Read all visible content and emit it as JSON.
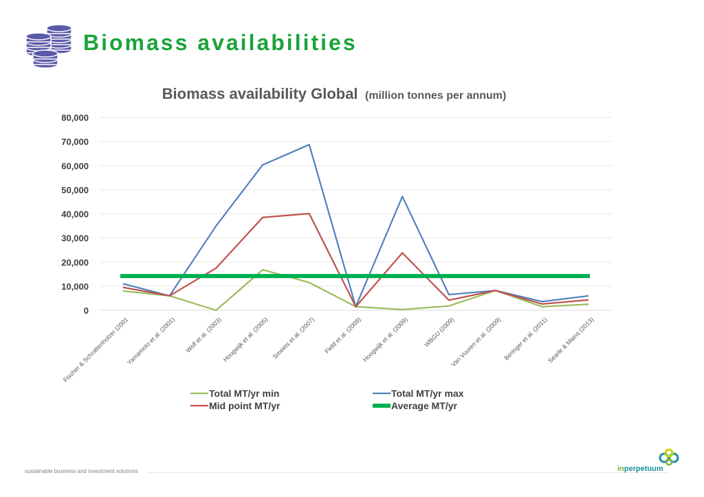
{
  "page": {
    "title": "Biomass availabilities",
    "footer": "sustainable business and investment solutions",
    "brand_prefix": "in",
    "brand_suffix": "perpetuum",
    "logo_icon": "database-stack-icon",
    "brand_icon": "interlinked-rings-icon"
  },
  "chart_data": {
    "type": "line",
    "title": "Biomass availability Global",
    "subtitle": "(million tonnes per annum)",
    "xlabel": "",
    "ylabel": "",
    "ylim": [
      0,
      80000
    ],
    "yticks": [
      0,
      10000,
      20000,
      30000,
      40000,
      50000,
      60000,
      70000,
      80000
    ],
    "ytick_labels": [
      "0",
      "10,000",
      "20,000",
      "30,000",
      "40,000",
      "50,000",
      "60,000",
      "70,000",
      "80,000"
    ],
    "grid": true,
    "legend_position": "bottom",
    "categories": [
      "Fischer & Schrattenholzer (2001",
      "Yamamoto et al. (2001)",
      "Wolf et al. (2003)",
      "Hoogwijk et al. (2005)",
      "Smeets et al. (2007)",
      "Field et al. (2008)",
      "Hoogwijk et al. (2009)",
      "WBGU (2009)",
      "Van Vuuren et al. (2009)",
      "Beringer et al. (2011)",
      "Searle & Mains (2013)"
    ],
    "series": [
      {
        "name": "Total MT/yr min",
        "color": "#9bbb59",
        "values": [
          8000,
          6000,
          0,
          16800,
          11500,
          1500,
          300,
          1800,
          8200,
          1500,
          2500
        ]
      },
      {
        "name": "Total MT/yr max",
        "color": "#4f81bd",
        "values": [
          11000,
          6000,
          35000,
          60300,
          68700,
          1500,
          47200,
          6500,
          8200,
          3600,
          6000
        ]
      },
      {
        "name": "Mid point MT/yr",
        "color": "#c0504d",
        "values": [
          9500,
          6000,
          17500,
          38500,
          40100,
          1500,
          23800,
          4200,
          8200,
          2600,
          4300
        ]
      },
      {
        "name": "Average MT/yr",
        "color": "#00b050",
        "values": [
          14200,
          14200,
          14200,
          14200,
          14200,
          14200,
          14200,
          14200,
          14200,
          14200,
          14200
        ]
      }
    ]
  }
}
